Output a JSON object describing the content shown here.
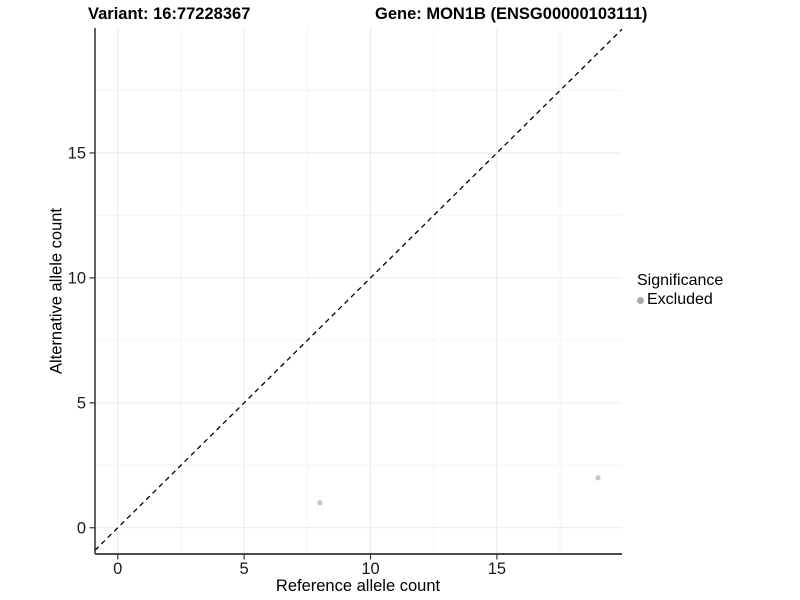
{
  "header": {
    "variant_title": "Variant: 16:77228367",
    "gene_title": "Gene: MON1B (ENSG00000103111)"
  },
  "chart_data": {
    "type": "scatter",
    "xlabel": "Reference allele count",
    "ylabel": "Alternative allele count",
    "xlim": [
      -0.9,
      19.95
    ],
    "ylim": [
      -1.05,
      20.0
    ],
    "x_ticks": [
      0,
      5,
      10,
      15
    ],
    "y_ticks": [
      0,
      5,
      10,
      15
    ],
    "x_minor_ticks": [
      2.5,
      7.5,
      12.5,
      17.5
    ],
    "y_minor_ticks": [
      2.5,
      7.5,
      12.5,
      17.5
    ],
    "grid": true,
    "series": [
      {
        "name": "Excluded",
        "color": "#c6c6c6",
        "points": [
          {
            "x": 8,
            "y": 1
          },
          {
            "x": 19,
            "y": 2
          }
        ]
      }
    ],
    "reference_line": {
      "type": "identity",
      "slope": 1,
      "intercept": 0,
      "style": "dashed",
      "color": "#000000"
    },
    "legend": {
      "title": "Significance",
      "position": "right",
      "entries": [
        {
          "label": "Excluded",
          "color": "#a8a8a8"
        }
      ]
    }
  },
  "colors": {
    "axis_line_y": "#1f1f1f",
    "axis_line_x": "#4d4d4d",
    "tick_mark": "#333333",
    "tick_label": "#1a1a1a",
    "grid_major": "#e9e9e9",
    "grid_minor": "#f4f4f4"
  }
}
